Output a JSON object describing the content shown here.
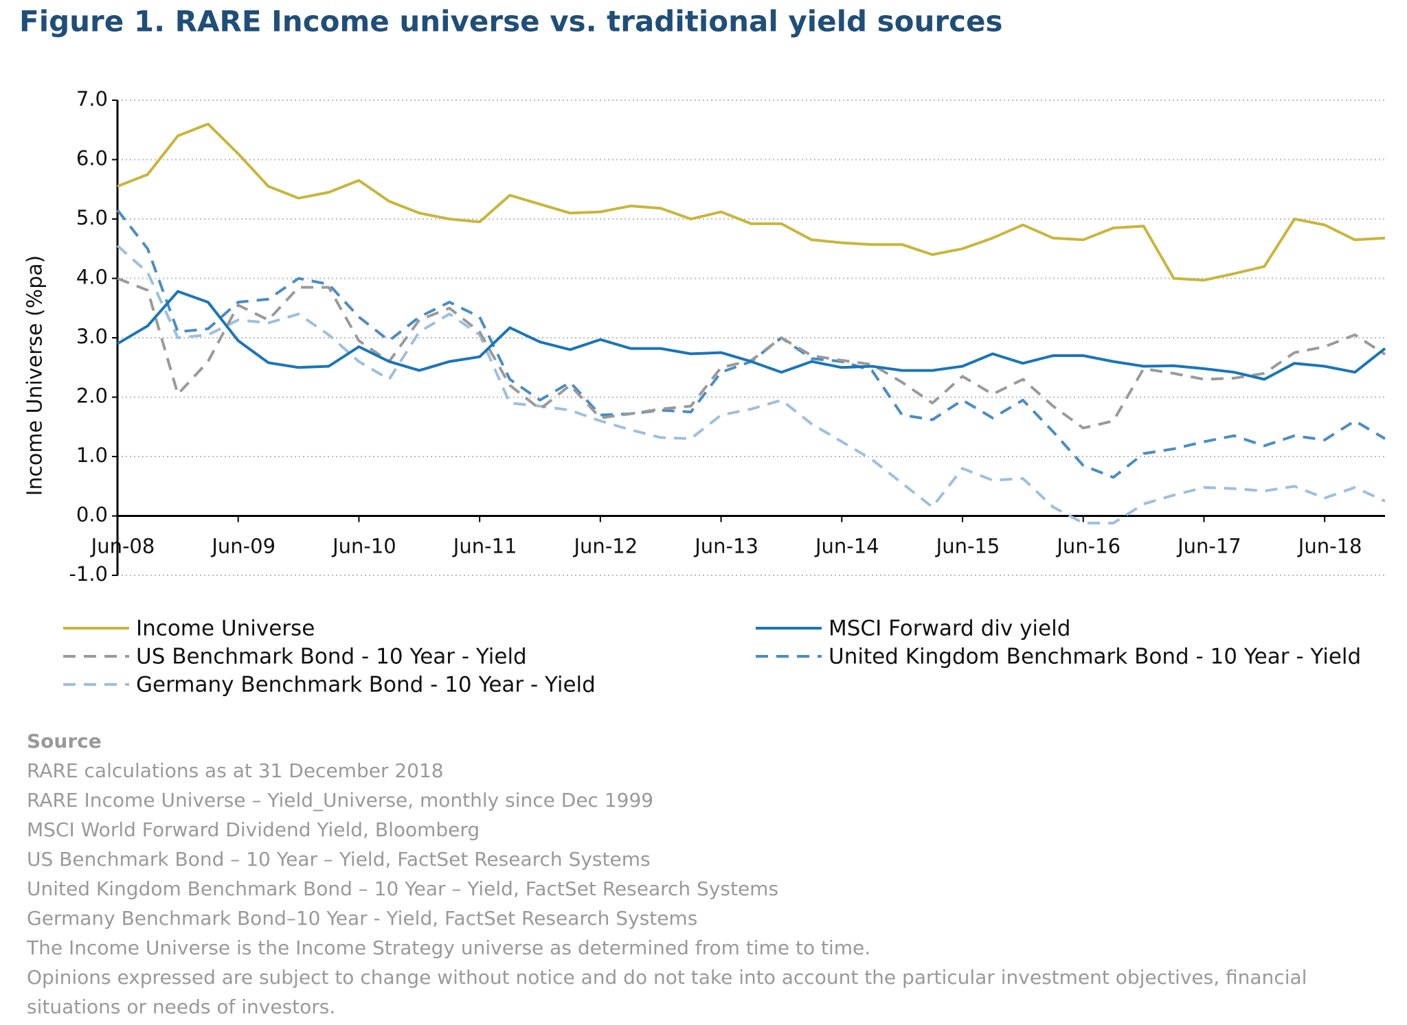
{
  "chart_data": {
    "type": "line",
    "title": "Figure 1. RARE Income universe vs. traditional yield sources",
    "ylabel": "Income Universe (%pa)",
    "categories": [
      "Jun-08",
      null,
      null,
      null,
      "Jun-09",
      null,
      null,
      null,
      "Jun-10",
      null,
      null,
      null,
      "Jun-11",
      null,
      null,
      null,
      "Jun-12",
      null,
      null,
      null,
      "Jun-13",
      null,
      null,
      null,
      "Jun-14",
      null,
      null,
      null,
      "Jun-15",
      null,
      null,
      null,
      "Jun-16",
      null,
      null,
      null,
      "Jun-17",
      null,
      null,
      null,
      "Jun-18",
      null,
      null
    ],
    "ylim": [
      -1,
      7
    ],
    "yticks": [
      {
        "value": -1,
        "label": "-1.0"
      },
      {
        "value": 0,
        "label": "0.0"
      },
      {
        "value": 1,
        "label": "1.0"
      },
      {
        "value": 2,
        "label": "2.0"
      },
      {
        "value": 3,
        "label": "3.0"
      },
      {
        "value": 4,
        "label": "4.0"
      },
      {
        "value": 5,
        "label": "5.0"
      },
      {
        "value": 6,
        "label": "6.0"
      },
      {
        "value": 7,
        "label": "7.0"
      }
    ],
    "grid": true,
    "series": [
      {
        "name": "Income Universe",
        "color": "#c8b63c",
        "style": "solid",
        "values": [
          5.55,
          5.75,
          6.4,
          6.6,
          6.1,
          5.55,
          5.35,
          5.45,
          5.65,
          5.3,
          5.1,
          5.0,
          4.95,
          5.4,
          5.25,
          5.1,
          5.12,
          5.22,
          5.18,
          5.0,
          5.12,
          4.92,
          4.92,
          4.65,
          4.6,
          4.57,
          4.57,
          4.4,
          4.5,
          4.68,
          4.9,
          4.68,
          4.65,
          4.85,
          4.88,
          4.0,
          3.97,
          4.08,
          4.2,
          5.0,
          4.9,
          4.65,
          4.68
        ]
      },
      {
        "name": "MSCI Forward div yield",
        "color": "#1a75b8",
        "style": "solid",
        "values": [
          2.9,
          3.2,
          3.78,
          3.6,
          2.95,
          2.58,
          2.5,
          2.52,
          2.85,
          2.6,
          2.45,
          2.6,
          2.68,
          3.17,
          2.93,
          2.8,
          2.97,
          2.82,
          2.82,
          2.73,
          2.75,
          2.6,
          2.42,
          2.6,
          2.5,
          2.52,
          2.45,
          2.45,
          2.52,
          2.73,
          2.57,
          2.7,
          2.7,
          2.6,
          2.52,
          2.53,
          2.48,
          2.42,
          2.3,
          2.57,
          2.52,
          2.42,
          2.82
        ]
      },
      {
        "name": "US Benchmark Bond - 10 Year - Yield",
        "color": "#9a9a9a",
        "style": "dashed",
        "values": [
          4.0,
          3.8,
          2.05,
          2.6,
          3.55,
          3.3,
          3.85,
          3.85,
          2.95,
          2.6,
          3.3,
          3.5,
          3.1,
          2.2,
          1.8,
          2.2,
          1.65,
          1.72,
          1.8,
          1.85,
          2.5,
          2.62,
          3.0,
          2.7,
          2.62,
          2.55,
          2.25,
          1.9,
          2.35,
          2.05,
          2.3,
          1.85,
          1.48,
          1.6,
          2.48,
          2.4,
          2.3,
          2.32,
          2.4,
          2.75,
          2.85,
          3.05,
          2.72
        ]
      },
      {
        "name": "United Kingdom Benchmark Bond - 10 Year - Yield",
        "color": "#4a8cc4",
        "style": "dashed",
        "values": [
          5.15,
          4.5,
          3.1,
          3.15,
          3.6,
          3.65,
          4.0,
          3.9,
          3.35,
          2.95,
          3.35,
          3.6,
          3.35,
          2.3,
          1.95,
          2.25,
          1.7,
          1.72,
          1.78,
          1.75,
          2.42,
          2.6,
          3.0,
          2.65,
          2.6,
          2.45,
          1.7,
          1.62,
          1.95,
          1.65,
          1.95,
          1.42,
          0.85,
          0.65,
          1.05,
          1.13,
          1.25,
          1.35,
          1.18,
          1.35,
          1.28,
          1.6,
          1.3
        ]
      },
      {
        "name": "Germany Benchmark Bond - 10 Year - Yield",
        "color": "#9dbfe0",
        "style": "dashed",
        "values": [
          4.55,
          4.1,
          3.0,
          3.05,
          3.3,
          3.25,
          3.4,
          3.05,
          2.6,
          2.3,
          3.1,
          3.4,
          3.05,
          1.9,
          1.85,
          1.78,
          1.6,
          1.45,
          1.32,
          1.3,
          1.7,
          1.8,
          1.95,
          1.55,
          1.25,
          0.95,
          0.55,
          0.15,
          0.8,
          0.6,
          0.63,
          0.15,
          -0.12,
          -0.12,
          0.2,
          0.35,
          0.48,
          0.46,
          0.42,
          0.5,
          0.3,
          0.48,
          0.25
        ]
      }
    ]
  },
  "source": {
    "heading": "Source",
    "lines": [
      "RARE calculations as at 31 December 2018",
      "RARE Income Universe – Yield_Universe, monthly since Dec 1999",
      "MSCI World  Forward Dividend Yield, Bloomberg",
      "US Benchmark Bond – 10 Year – Yield, FactSet Research Systems",
      "United Kingdom Benchmark Bond – 10 Year – Yield, FactSet Research Systems",
      "Germany Benchmark Bond–10 Year - Yield, FactSet Research Systems",
      "The Income Universe is the Income Strategy universe as determined from time to time.",
      "Opinions expressed are subject to change without notice and do not take into account the particular investment objectives, financial situations or needs of investors."
    ]
  }
}
